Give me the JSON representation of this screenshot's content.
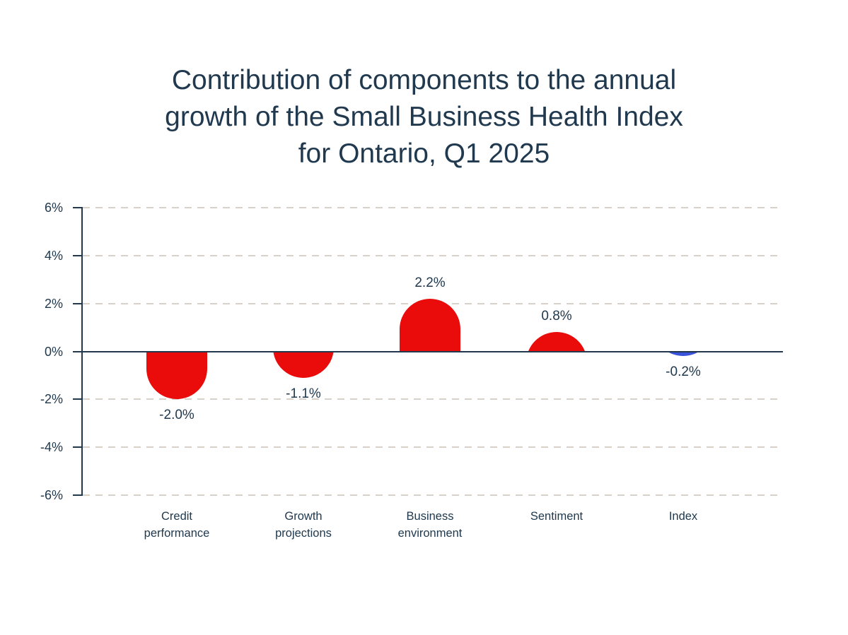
{
  "title": {
    "lines": [
      "Contribution of components to the annual",
      "growth of the Small Business Health Index",
      "for Ontario, Q1 2025"
    ]
  },
  "chart_data": {
    "type": "bar",
    "title": "Contribution of components to the annual growth of the Small Business Health Index for Ontario, Q1 2025",
    "categories": [
      "Credit\nperformance",
      "Growth\nprojections",
      "Business\nenvironment",
      "Sentiment",
      "Index"
    ],
    "values": [
      -2.0,
      -1.1,
      2.2,
      0.8,
      -0.2
    ],
    "value_labels": [
      "-2.0%",
      "-1.1%",
      "2.2%",
      "0.8%",
      "-0.2%"
    ],
    "bar_colors": [
      "#ea0b0b",
      "#ea0b0b",
      "#ea0b0b",
      "#ea0b0b",
      "#3b52da"
    ],
    "y_ticks": [
      6,
      4,
      2,
      0,
      -2,
      -4,
      -6
    ],
    "y_tick_labels": [
      "6%",
      "4%",
      "2%",
      "0%",
      "-2%",
      "-4%",
      "-6%"
    ],
    "ylim": [
      -6,
      6
    ],
    "xlabel": "",
    "ylabel": "",
    "grid": "horizontal-dashed",
    "legend": "none",
    "bar_style": "rounded-capsule-ends",
    "colors": {
      "component_red": "#ea0b0b",
      "index_blue": "#3b52da",
      "axis": "#22384d",
      "text": "#20394e",
      "gridline": "#d8d1ca",
      "background": "#ffffff"
    }
  }
}
